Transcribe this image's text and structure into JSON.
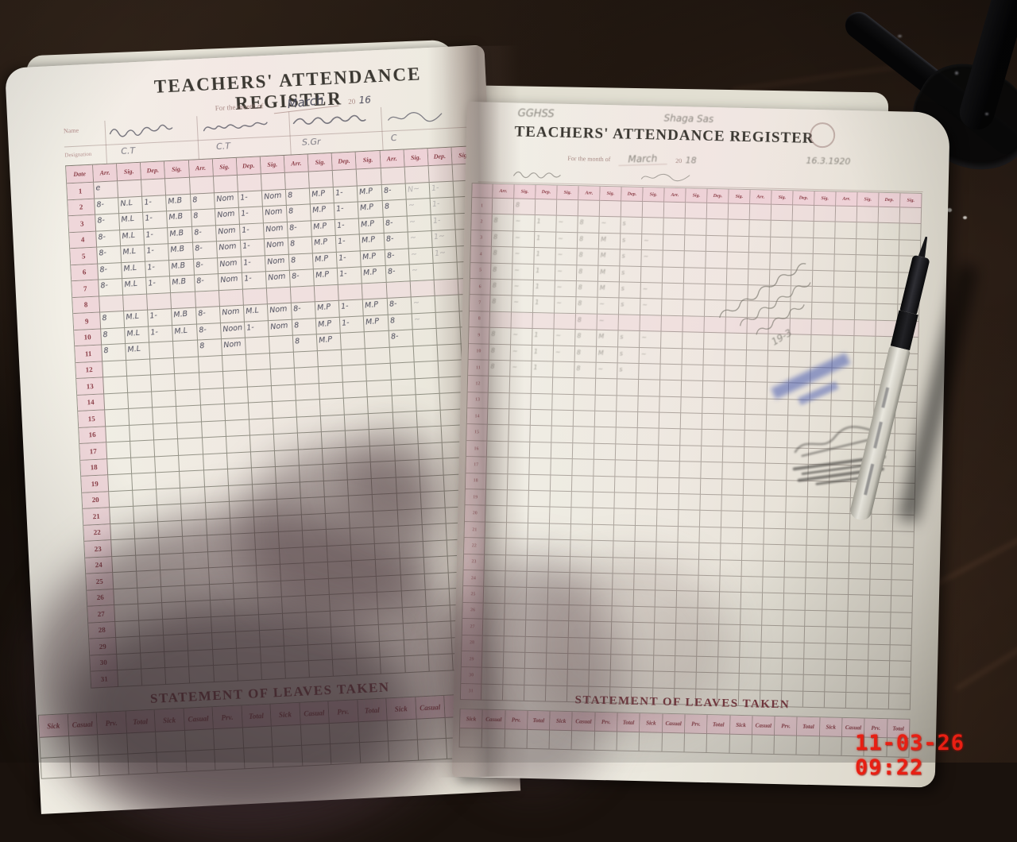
{
  "camera": {
    "timestamp": "11-03-26 09:22"
  },
  "left_page": {
    "title": "TEACHERS' ATTENDANCE REGISTER",
    "month_label": "For the month of",
    "month_value": "March",
    "year_prefix": "20",
    "year_value": "16",
    "name_label": "Name",
    "designation_label": "Designation",
    "designations": [
      "C.T",
      "C.T",
      "S.Gr",
      "C"
    ],
    "grid_headers": {
      "date": "Date",
      "cycle": [
        "Arr.",
        "Sig.",
        "Dep.",
        "Sig."
      ]
    },
    "row_count": 31,
    "entries": {
      "1": [
        "e"
      ],
      "2": [
        "8-",
        "N.L",
        "1-",
        "M.B",
        "8",
        "Nom",
        "1-",
        "Nom",
        "8",
        "M.P",
        "1-",
        "M.P",
        "8-",
        "N~",
        "1-",
        ""
      ],
      "3": [
        "8-",
        "M.L",
        "1-",
        "M.B",
        "8",
        "Nom",
        "1-",
        "Nom",
        "8",
        "M.P",
        "1-",
        "M.P",
        "8",
        "~",
        "1-",
        ""
      ],
      "4": [
        "8-",
        "M.L",
        "1-",
        "M.B",
        "8-",
        "Nom",
        "1-",
        "Nom",
        "8-",
        "M.P",
        "1-",
        "M.P",
        "8-",
        "~",
        "1-",
        ""
      ],
      "5": [
        "8-",
        "M.L",
        "1-",
        "M.B",
        "8-",
        "Nom",
        "1-",
        "Nom",
        "8",
        "M.P",
        "1-",
        "M.P",
        "8-",
        "~",
        "1~",
        ""
      ],
      "6": [
        "8-",
        "M.L",
        "1-",
        "M.B",
        "8-",
        "Nom",
        "1-",
        "Nom",
        "8",
        "M.P",
        "1-",
        "M.P",
        "8-",
        "~",
        "1~",
        ""
      ],
      "7": [
        "8-",
        "M.L",
        "1-",
        "M.B",
        "8-",
        "Nom",
        "1-",
        "Nom",
        "8-",
        "M.P",
        "1-",
        "M.P",
        "8-",
        "~",
        "",
        ""
      ],
      "9": [
        "8",
        "M.L",
        "1-",
        "M.B",
        "8-",
        "Nom",
        "M.L",
        "Nom",
        "8-",
        "M.P",
        "1-",
        "M.P",
        "8-",
        "~",
        "",
        ""
      ],
      "10": [
        "8",
        "M.L",
        "1-",
        "M.L",
        "8-",
        "Noon",
        "1-",
        "Nom",
        "8",
        "M.P",
        "1-",
        "M.P",
        "8",
        "~",
        "",
        ""
      ],
      "11": [
        "8",
        "M.L",
        "",
        "",
        "8",
        "Nom",
        "",
        "",
        "8",
        "M.P",
        "",
        "",
        "8-",
        "",
        "",
        ""
      ]
    },
    "statement_heading": "STATEMENT OF LEAVES TAKEN",
    "statement_headers": [
      "Sick",
      "Casual",
      "Prv.",
      "Total"
    ]
  },
  "right_page": {
    "school_name": "GGHSS",
    "school_location": "Shaga Sas",
    "title": "TEACHERS' ATTENDANCE REGISTER",
    "month_label": "For the month of",
    "month_value": "March",
    "year_prefix": "20",
    "year_value": "18",
    "corner_date": "16.3.1920",
    "pencil_note_date": "19-3",
    "grid_headers": {
      "date": "",
      "cycle": [
        "Arr.",
        "Sig.",
        "Dep.",
        "Sig."
      ]
    },
    "row_count": 31,
    "entries": {
      "1": [
        "",
        "8"
      ],
      "2": [
        "8",
        "~",
        "1",
        "~",
        "8",
        "~",
        "s"
      ],
      "3": [
        "8",
        "~",
        "1",
        "~",
        "8",
        "M",
        "s",
        "~"
      ],
      "4": [
        "8",
        "~",
        "1",
        "~",
        "8",
        "M",
        "s",
        "~"
      ],
      "5": [
        "8",
        "~",
        "1",
        "~",
        "8",
        "M",
        "s"
      ],
      "6": [
        "8",
        "~",
        "1",
        "~",
        "8",
        "M",
        "s",
        "~"
      ],
      "7": [
        "8",
        "~",
        "1",
        "~",
        "8",
        "~",
        "s",
        "~"
      ],
      "8": [
        "",
        "",
        "",
        "",
        "8",
        "~"
      ],
      "9": [
        "8",
        "~",
        "1",
        "~",
        "8",
        "M",
        "s",
        "~"
      ],
      "10": [
        "8",
        "~",
        "1",
        "~",
        "8",
        "M",
        "s",
        "~"
      ],
      "11": [
        "8",
        "~",
        "1",
        "",
        "8",
        "~",
        "s"
      ]
    },
    "statement_heading": "STATEMENT OF LEAVES TAKEN",
    "statement_headers": [
      "Sick",
      "Casual",
      "Prv.",
      "Total"
    ]
  }
}
